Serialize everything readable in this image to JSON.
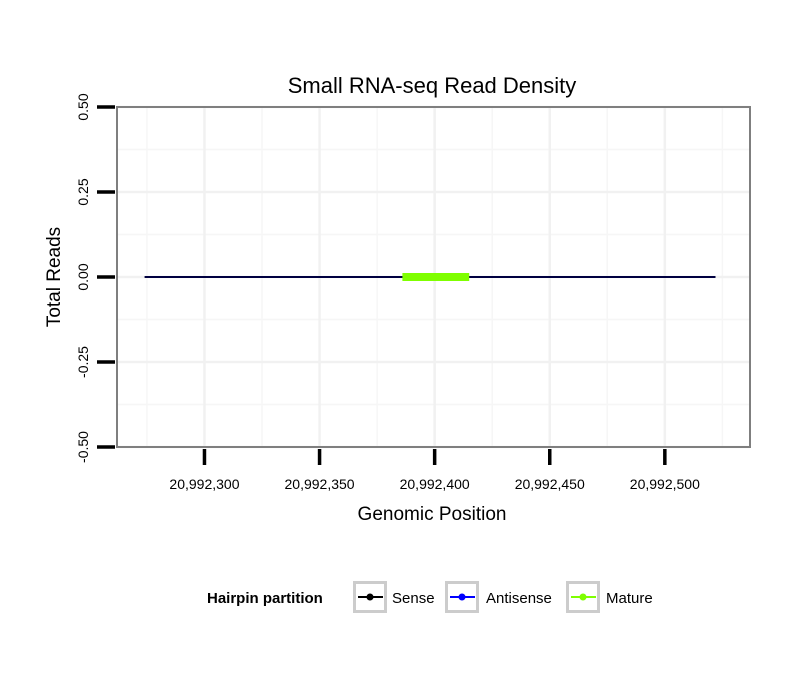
{
  "chart_data": {
    "type": "line",
    "title": "Small RNA-seq Read Density",
    "xlabel": "Genomic Position",
    "ylabel": "Total Reads",
    "xlim": [
      20992262,
      20992537
    ],
    "ylim": [
      -0.5,
      0.5
    ],
    "x_ticks": [
      20992300,
      20992350,
      20992400,
      20992450,
      20992500
    ],
    "x_tick_labels": [
      "20,992,300",
      "20,992,350",
      "20,992,400",
      "20,992,450",
      "20,992,500"
    ],
    "y_ticks": [
      -0.5,
      -0.25,
      0,
      0.25,
      0.5
    ],
    "y_tick_labels": [
      "-0.50",
      "-0.25",
      "0.00",
      "0.25",
      "0.50"
    ],
    "grid": true,
    "legend_position": "bottom",
    "legend_title": "Hairpin partition",
    "series": [
      {
        "name": "Sense",
        "color": "#000000",
        "x": [
          20992274,
          20992522
        ],
        "values": [
          0,
          0
        ]
      },
      {
        "name": "Antisense",
        "color": "#0000ff",
        "x": [
          20992274,
          20992522
        ],
        "values": [
          0,
          0
        ]
      },
      {
        "name": "Mature",
        "color": "#7fff00",
        "x": [
          20992386,
          20992415
        ],
        "values": [
          0,
          0
        ]
      }
    ]
  }
}
